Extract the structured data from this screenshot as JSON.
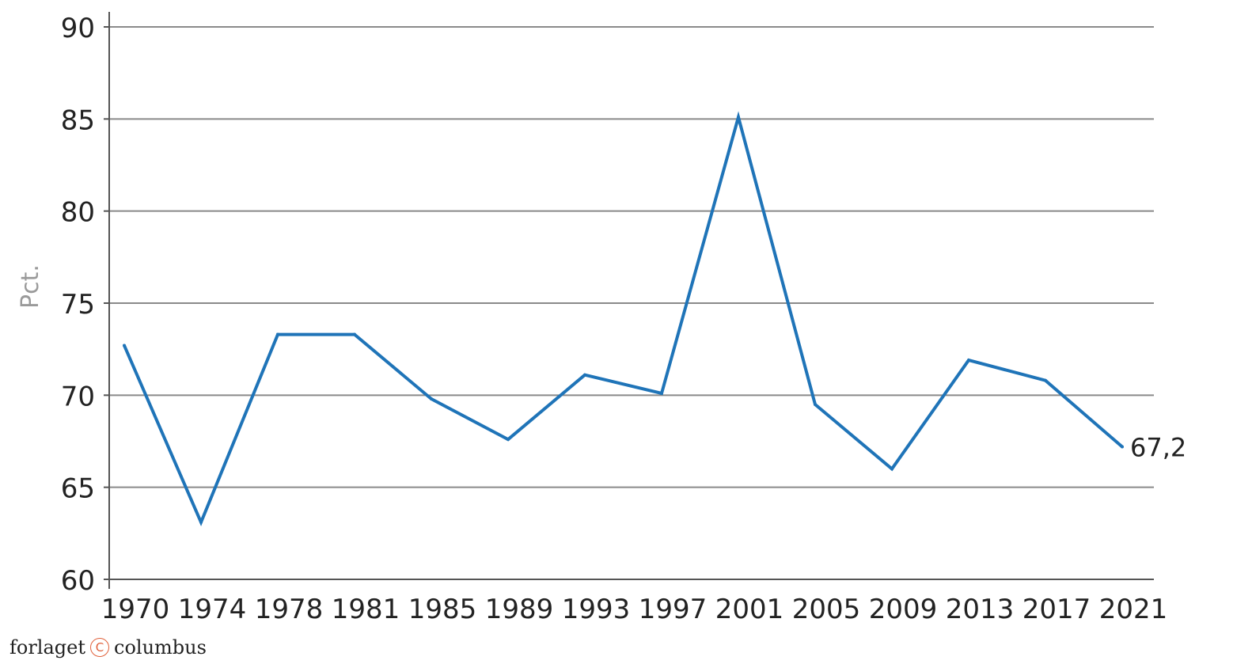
{
  "chart_data": {
    "type": "line",
    "ylabel": "Pct.",
    "ylim": [
      60,
      90
    ],
    "yticks": [
      60,
      65,
      70,
      75,
      80,
      85,
      90
    ],
    "grid": true,
    "categories": [
      "1970",
      "1974",
      "1978",
      "1981",
      "1985",
      "1989",
      "1993",
      "1997",
      "2001",
      "2005",
      "2009",
      "2013",
      "2017",
      "2021"
    ],
    "line_color": "#1f74b8",
    "series": [
      {
        "values": [
          72.7,
          63.1,
          73.3,
          73.3,
          69.8,
          67.6,
          71.1,
          70.1,
          85.1,
          69.5,
          66.0,
          71.9,
          70.8,
          67.2
        ]
      }
    ],
    "annotations": [
      {
        "category": "2021",
        "text": "67,2"
      }
    ]
  },
  "footer": {
    "brand_left": "forlaget",
    "brand_mark": "C",
    "brand_right": "columbus",
    "brand_color": "#e0603a"
  }
}
